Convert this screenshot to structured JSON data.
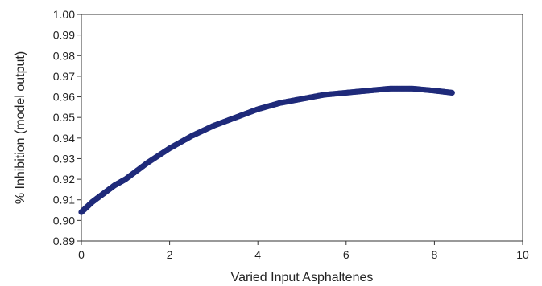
{
  "chart_data": {
    "type": "scatter",
    "xlabel": "Varied Input Asphaltenes",
    "ylabel": "% Inhibition (model output)",
    "xlim": [
      0,
      10
    ],
    "ylim": [
      0.89,
      1.0
    ],
    "x_ticks": [
      "0",
      "2",
      "4",
      "6",
      "8",
      "10"
    ],
    "y_ticks": [
      "0.89",
      "0.90",
      "0.91",
      "0.92",
      "0.93",
      "0.94",
      "0.95",
      "0.96",
      "0.97",
      "0.98",
      "0.99",
      "1.00"
    ],
    "grid": false,
    "legend": "none",
    "marker_color": "#1f2a7a",
    "series": [
      {
        "x": [
          0,
          0.25,
          0.5,
          0.75,
          1.0,
          1.5,
          2.0,
          2.5,
          3.0,
          3.5,
          4.0,
          4.5,
          5.0,
          5.5,
          6.0,
          6.5,
          7.0,
          7.5,
          8.0,
          8.4
        ],
        "values": [
          0.904,
          0.909,
          0.913,
          0.917,
          0.92,
          0.928,
          0.935,
          0.941,
          0.946,
          0.95,
          0.954,
          0.957,
          0.959,
          0.961,
          0.962,
          0.963,
          0.964,
          0.964,
          0.963,
          0.962
        ]
      }
    ]
  }
}
